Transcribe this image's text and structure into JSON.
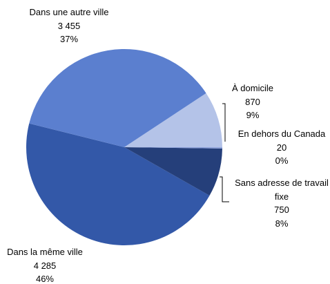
{
  "chart_data": {
    "type": "pie",
    "categories": [
      "Dans une autre ville",
      "À domicile",
      "En dehors du Canada",
      "Sans adresse de travail fixe",
      "Dans la même ville"
    ],
    "values": [
      3455,
      870,
      20,
      750,
      4285
    ],
    "value_labels": [
      "3 455",
      "870",
      "20",
      "750",
      "4 285"
    ],
    "percent_labels": [
      "37%",
      "9%",
      "0%",
      "8%",
      "46%"
    ],
    "colors": [
      "#5b7fcf",
      "#b4c3e8",
      "#8fa3dc",
      "#253f7a",
      "#3358a8"
    ]
  }
}
